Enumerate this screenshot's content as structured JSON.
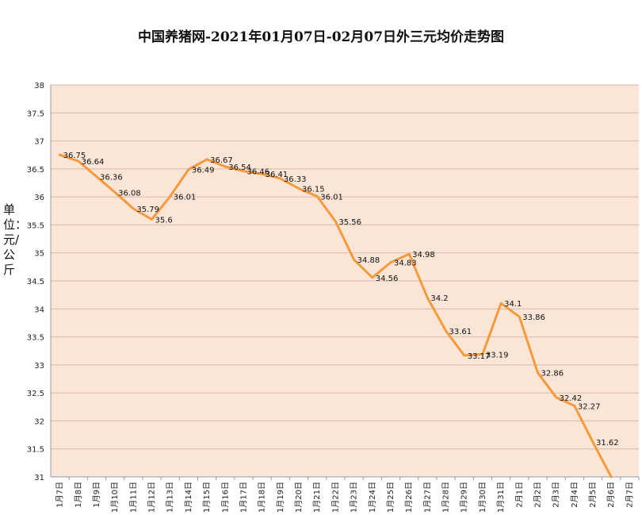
{
  "chart_data": {
    "type": "line",
    "title": "中国养猪网-2021年01月07日-02月07日外三元均价走势图",
    "ylabel": "单位：元/公斤",
    "xlabel": "",
    "ylim": [
      31,
      38
    ],
    "ytick_step": 0.5,
    "grid": true,
    "legend": "none",
    "colors": {
      "line": "#f39a3b",
      "plot_bg": "#fbe5d6",
      "grid": "#d9b8a4"
    },
    "categories": [
      "1月7日",
      "1月8日",
      "1月9日",
      "1月10日",
      "1月11日",
      "1月12日",
      "1月13日",
      "1月14日",
      "1月15日",
      "1月16日",
      "1月17日",
      "1月18日",
      "1月19日",
      "1月20日",
      "1月21日",
      "1月22日",
      "1月23日",
      "1月24日",
      "1月25日",
      "1月26日",
      "1月27日",
      "1月28日",
      "1月29日",
      "1月30日",
      "1月31日",
      "2月1日",
      "2月2日",
      "2月3日",
      "2月4日",
      "2月5日",
      "2月6日",
      "2月7日"
    ],
    "values": [
      36.75,
      36.64,
      36.36,
      36.08,
      35.79,
      35.6,
      36.01,
      36.49,
      36.67,
      36.54,
      36.46,
      36.41,
      36.33,
      36.15,
      36.01,
      35.56,
      34.88,
      34.56,
      34.83,
      34.98,
      34.2,
      33.61,
      33.17,
      33.19,
      34.1,
      33.86,
      32.86,
      32.42,
      32.27,
      31.62,
      31.0,
      null
    ],
    "data_labels": [
      "36.75",
      "36.64",
      "36.36",
      "36.08",
      "35.79",
      "35.6",
      "36.01",
      "36.49",
      "36.67",
      "36.54",
      "36.46",
      "36.41",
      "36.33",
      "36.15",
      "36.01",
      "35.56",
      "34.88",
      "34.56",
      "34.83",
      "34.98",
      "34.2",
      "33.61",
      "33.17",
      "33.19",
      "34.1",
      "33.86",
      "32.86",
      "32.42",
      "32.27",
      "31.62",
      "",
      ""
    ]
  }
}
